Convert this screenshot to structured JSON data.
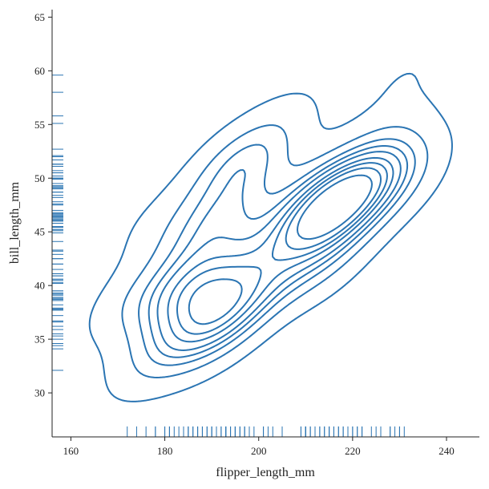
{
  "chart_data": {
    "type": "kde-rug",
    "x_label": "flipper_length_mm",
    "y_label": "bill_length_mm",
    "color": "#2b75b3",
    "x": [
      181,
      186,
      195,
      193,
      190,
      181,
      195,
      182,
      191,
      198,
      185,
      195,
      197,
      184,
      194,
      174,
      180,
      189,
      185,
      180,
      187,
      183,
      187,
      172,
      178,
      188,
      184,
      195,
      196,
      190,
      192,
      176,
      202,
      210,
      189,
      185,
      193,
      199,
      186,
      191,
      192,
      196,
      193,
      188,
      197,
      198,
      178,
      197,
      195,
      198,
      193,
      194,
      190,
      201,
      212,
      187,
      205,
      201,
      181,
      211,
      230,
      210,
      218,
      215,
      210,
      211,
      219,
      209,
      215,
      214,
      216,
      214,
      213,
      210,
      217,
      210,
      221,
      209,
      222,
      218,
      215,
      213,
      215,
      215,
      220,
      222,
      230,
      231,
      225,
      221,
      217,
      224,
      228,
      216,
      222,
      220,
      205,
      203,
      228,
      229,
      226
    ],
    "y": [
      39.1,
      39.5,
      40.3,
      36.7,
      39.3,
      38.9,
      39.2,
      34.1,
      42.0,
      37.8,
      37.8,
      41.1,
      38.6,
      34.6,
      36.6,
      38.7,
      42.5,
      34.4,
      46.0,
      37.8,
      37.7,
      35.9,
      38.2,
      38.8,
      35.3,
      40.6,
      40.5,
      37.9,
      40.5,
      39.5,
      37.2,
      32.1,
      41.1,
      41.5,
      36.2,
      40.9,
      35.5,
      43.2,
      35.0,
      44.1,
      46.5,
      50.0,
      51.3,
      45.4,
      52.7,
      45.2,
      46.1,
      51.3,
      46.0,
      51.3,
      46.6,
      51.7,
      47.0,
      52.0,
      50.5,
      42.5,
      55.8,
      49.2,
      58.0,
      46.1,
      50.0,
      48.7,
      50.0,
      47.6,
      46.5,
      45.4,
      46.7,
      43.3,
      46.8,
      40.9,
      49.0,
      45.5,
      48.4,
      45.8,
      49.3,
      42.0,
      49.2,
      46.2,
      48.7,
      50.2,
      45.1,
      46.5,
      46.3,
      42.9,
      46.1,
      47.8,
      48.2,
      59.6,
      50.5,
      49.5,
      46.4,
      52.1,
      50.7,
      47.5,
      49.1,
      45.2,
      44.9,
      40.2,
      49.9,
      55.1,
      51.1
    ],
    "xlim": [
      156,
      247
    ],
    "ylim": [
      25.9,
      65.7
    ],
    "xticks": [
      160,
      180,
      200,
      220,
      240
    ],
    "yticks": [
      30,
      35,
      40,
      45,
      50,
      55,
      60,
      65
    ],
    "grid": false
  }
}
